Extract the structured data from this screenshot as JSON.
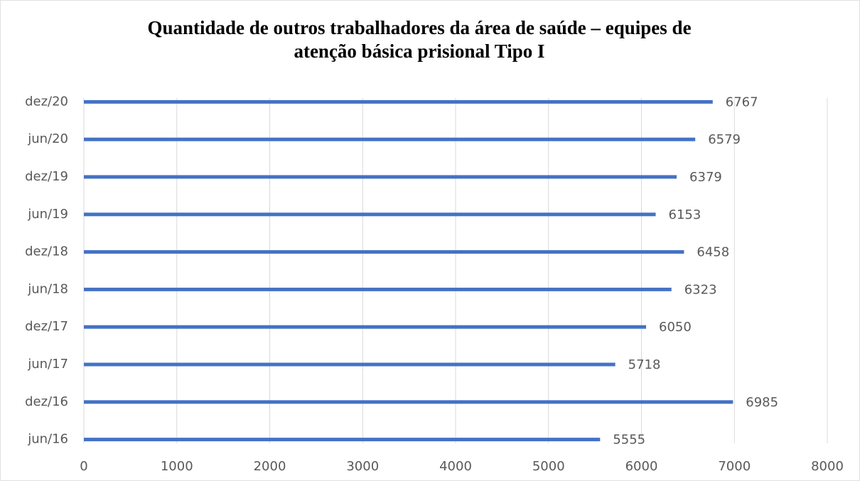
{
  "chart_data": {
    "type": "bar",
    "orientation": "horizontal",
    "title": [
      "Quantidade de outros trabalhadores da área de saúde – equipes de",
      "atenção básica prisional Tipo I"
    ],
    "categories": [
      "jun/16",
      "dez/16",
      "jun/17",
      "dez/17",
      "jun/18",
      "dez/18",
      "jun/19",
      "dez/19",
      "jun/20",
      "dez/20"
    ],
    "values": [
      5555,
      6985,
      5718,
      6050,
      6323,
      6458,
      6153,
      6379,
      6579,
      6767
    ],
    "color": "#4472c4",
    "xlim": [
      0,
      8000
    ],
    "xticks": [
      0,
      1000,
      2000,
      3000,
      4000,
      5000,
      6000,
      7000,
      8000
    ],
    "grid": true
  }
}
